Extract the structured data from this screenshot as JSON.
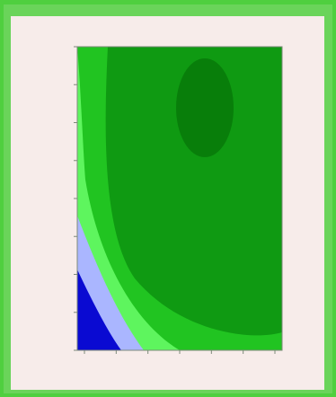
{
  "chart_data": {
    "type": "heatmap",
    "title": "",
    "xlabel": "",
    "ylabel": "",
    "x_ticks": [
      "",
      "",
      "",
      "",
      "",
      "",
      ""
    ],
    "y_ticks": [
      "",
      "",
      "",
      "",
      "",
      "",
      "",
      "",
      ""
    ],
    "levels": [
      {
        "name": "",
        "color": "#0a0ad2"
      },
      {
        "name": "",
        "color": "#aab6ff"
      },
      {
        "name": "",
        "color": "#5ef55e"
      },
      {
        "name": "",
        "color": "#21c421"
      },
      {
        "name": "",
        "color": "#0f9a12"
      },
      {
        "name": "",
        "color": "#087e0a"
      }
    ],
    "legend": "none",
    "grid": false
  }
}
